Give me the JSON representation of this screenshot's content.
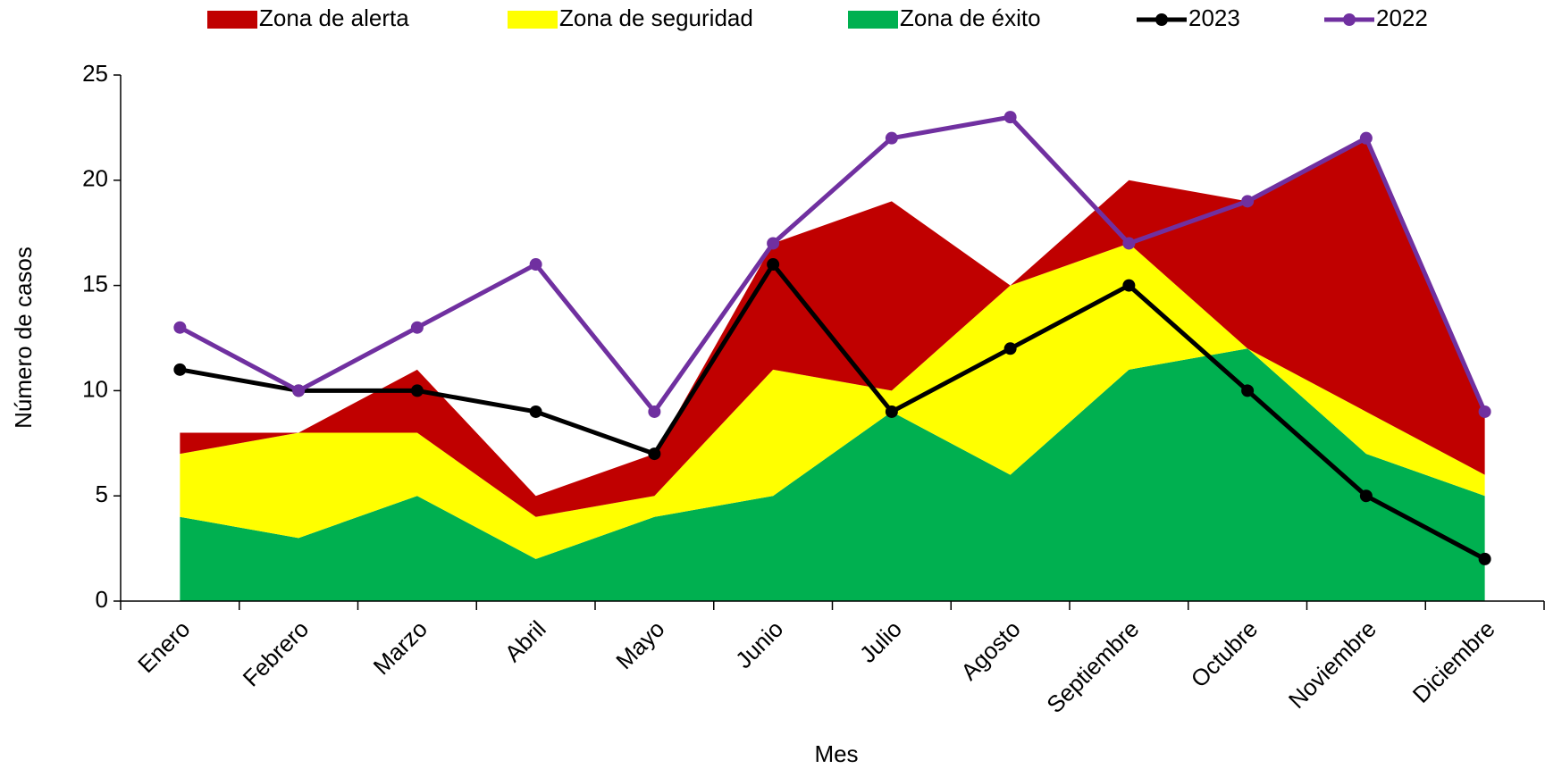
{
  "chart_data": {
    "type": "area",
    "x_label": "Mes",
    "y_label": "Número de casos",
    "categories": [
      "Enero",
      "Febrero",
      "Marzo",
      "Abril",
      "Mayo",
      "Junio",
      "Julio",
      "Agosto",
      "Septiembre",
      "Octubre",
      "Noviembre",
      "Diciembre"
    ],
    "series": [
      {
        "name": "Zona de alerta",
        "type": "area",
        "color": "#c00000",
        "values": [
          1,
          0,
          3,
          1,
          2,
          6,
          9,
          0,
          3,
          7,
          13,
          3
        ]
      },
      {
        "name": "Zona de seguridad",
        "type": "area",
        "color": "#ffff00",
        "values": [
          3,
          5,
          3,
          2,
          1,
          6,
          1,
          9,
          6,
          0,
          2,
          1
        ]
      },
      {
        "name": "Zona de éxito",
        "type": "area",
        "color": "#00b050",
        "values": [
          4,
          3,
          5,
          2,
          4,
          5,
          9,
          6,
          11,
          12,
          7,
          5
        ]
      },
      {
        "name": "2023",
        "type": "line",
        "color": "#000000",
        "values": [
          11,
          10,
          10,
          9,
          7,
          16,
          9,
          12,
          15,
          10,
          5,
          2
        ]
      },
      {
        "name": "2022",
        "type": "line",
        "color": "#7030a0",
        "values": [
          13,
          10,
          13,
          16,
          9,
          17,
          22,
          23,
          17,
          19,
          22,
          9
        ]
      }
    ],
    "stacked": true,
    "ylim": [
      0,
      25
    ],
    "yticks": [
      0,
      5,
      10,
      15,
      20,
      25
    ],
    "grid": false
  }
}
